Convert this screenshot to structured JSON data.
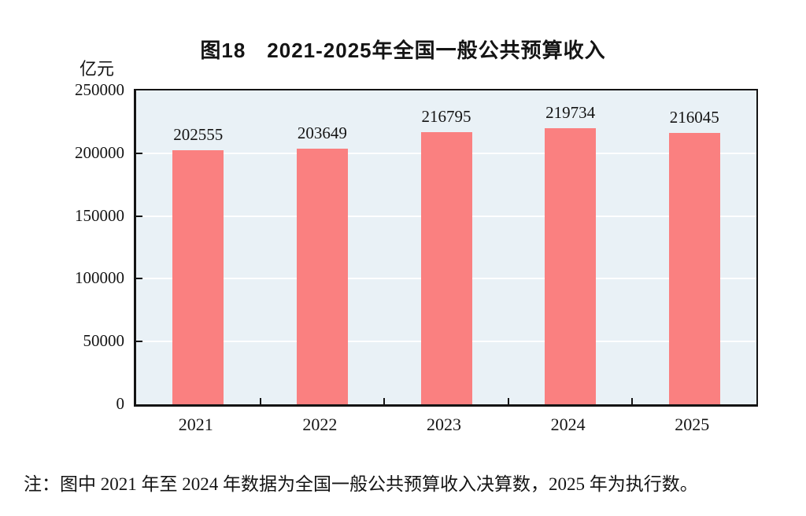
{
  "title": "图18　2021-2025年全国一般公共预算收入",
  "unit_label": "亿元",
  "note": "注：图中 2021 年至 2024 年数据为全国一般公共预算收入决算数，2025 年为执行数。",
  "chart_data": {
    "type": "bar",
    "title": "图18　2021-2025年全国一般公共预算收入",
    "ylabel": "亿元",
    "xlabel": "",
    "categories": [
      "2021",
      "2022",
      "2023",
      "2024",
      "2025"
    ],
    "values": [
      202555,
      203649,
      216795,
      219734,
      216045
    ],
    "data_labels": [
      202555,
      203649,
      216795,
      219734,
      216045
    ],
    "ylim": [
      0,
      250000
    ],
    "yticks": [
      0,
      50000,
      100000,
      150000,
      200000,
      250000
    ],
    "grid": true,
    "legend": "none",
    "bar_color": "#FA8080",
    "plot_background": "#E9F1F6",
    "gridline_color": "#FFFFFF",
    "axis_color": "#141414"
  }
}
